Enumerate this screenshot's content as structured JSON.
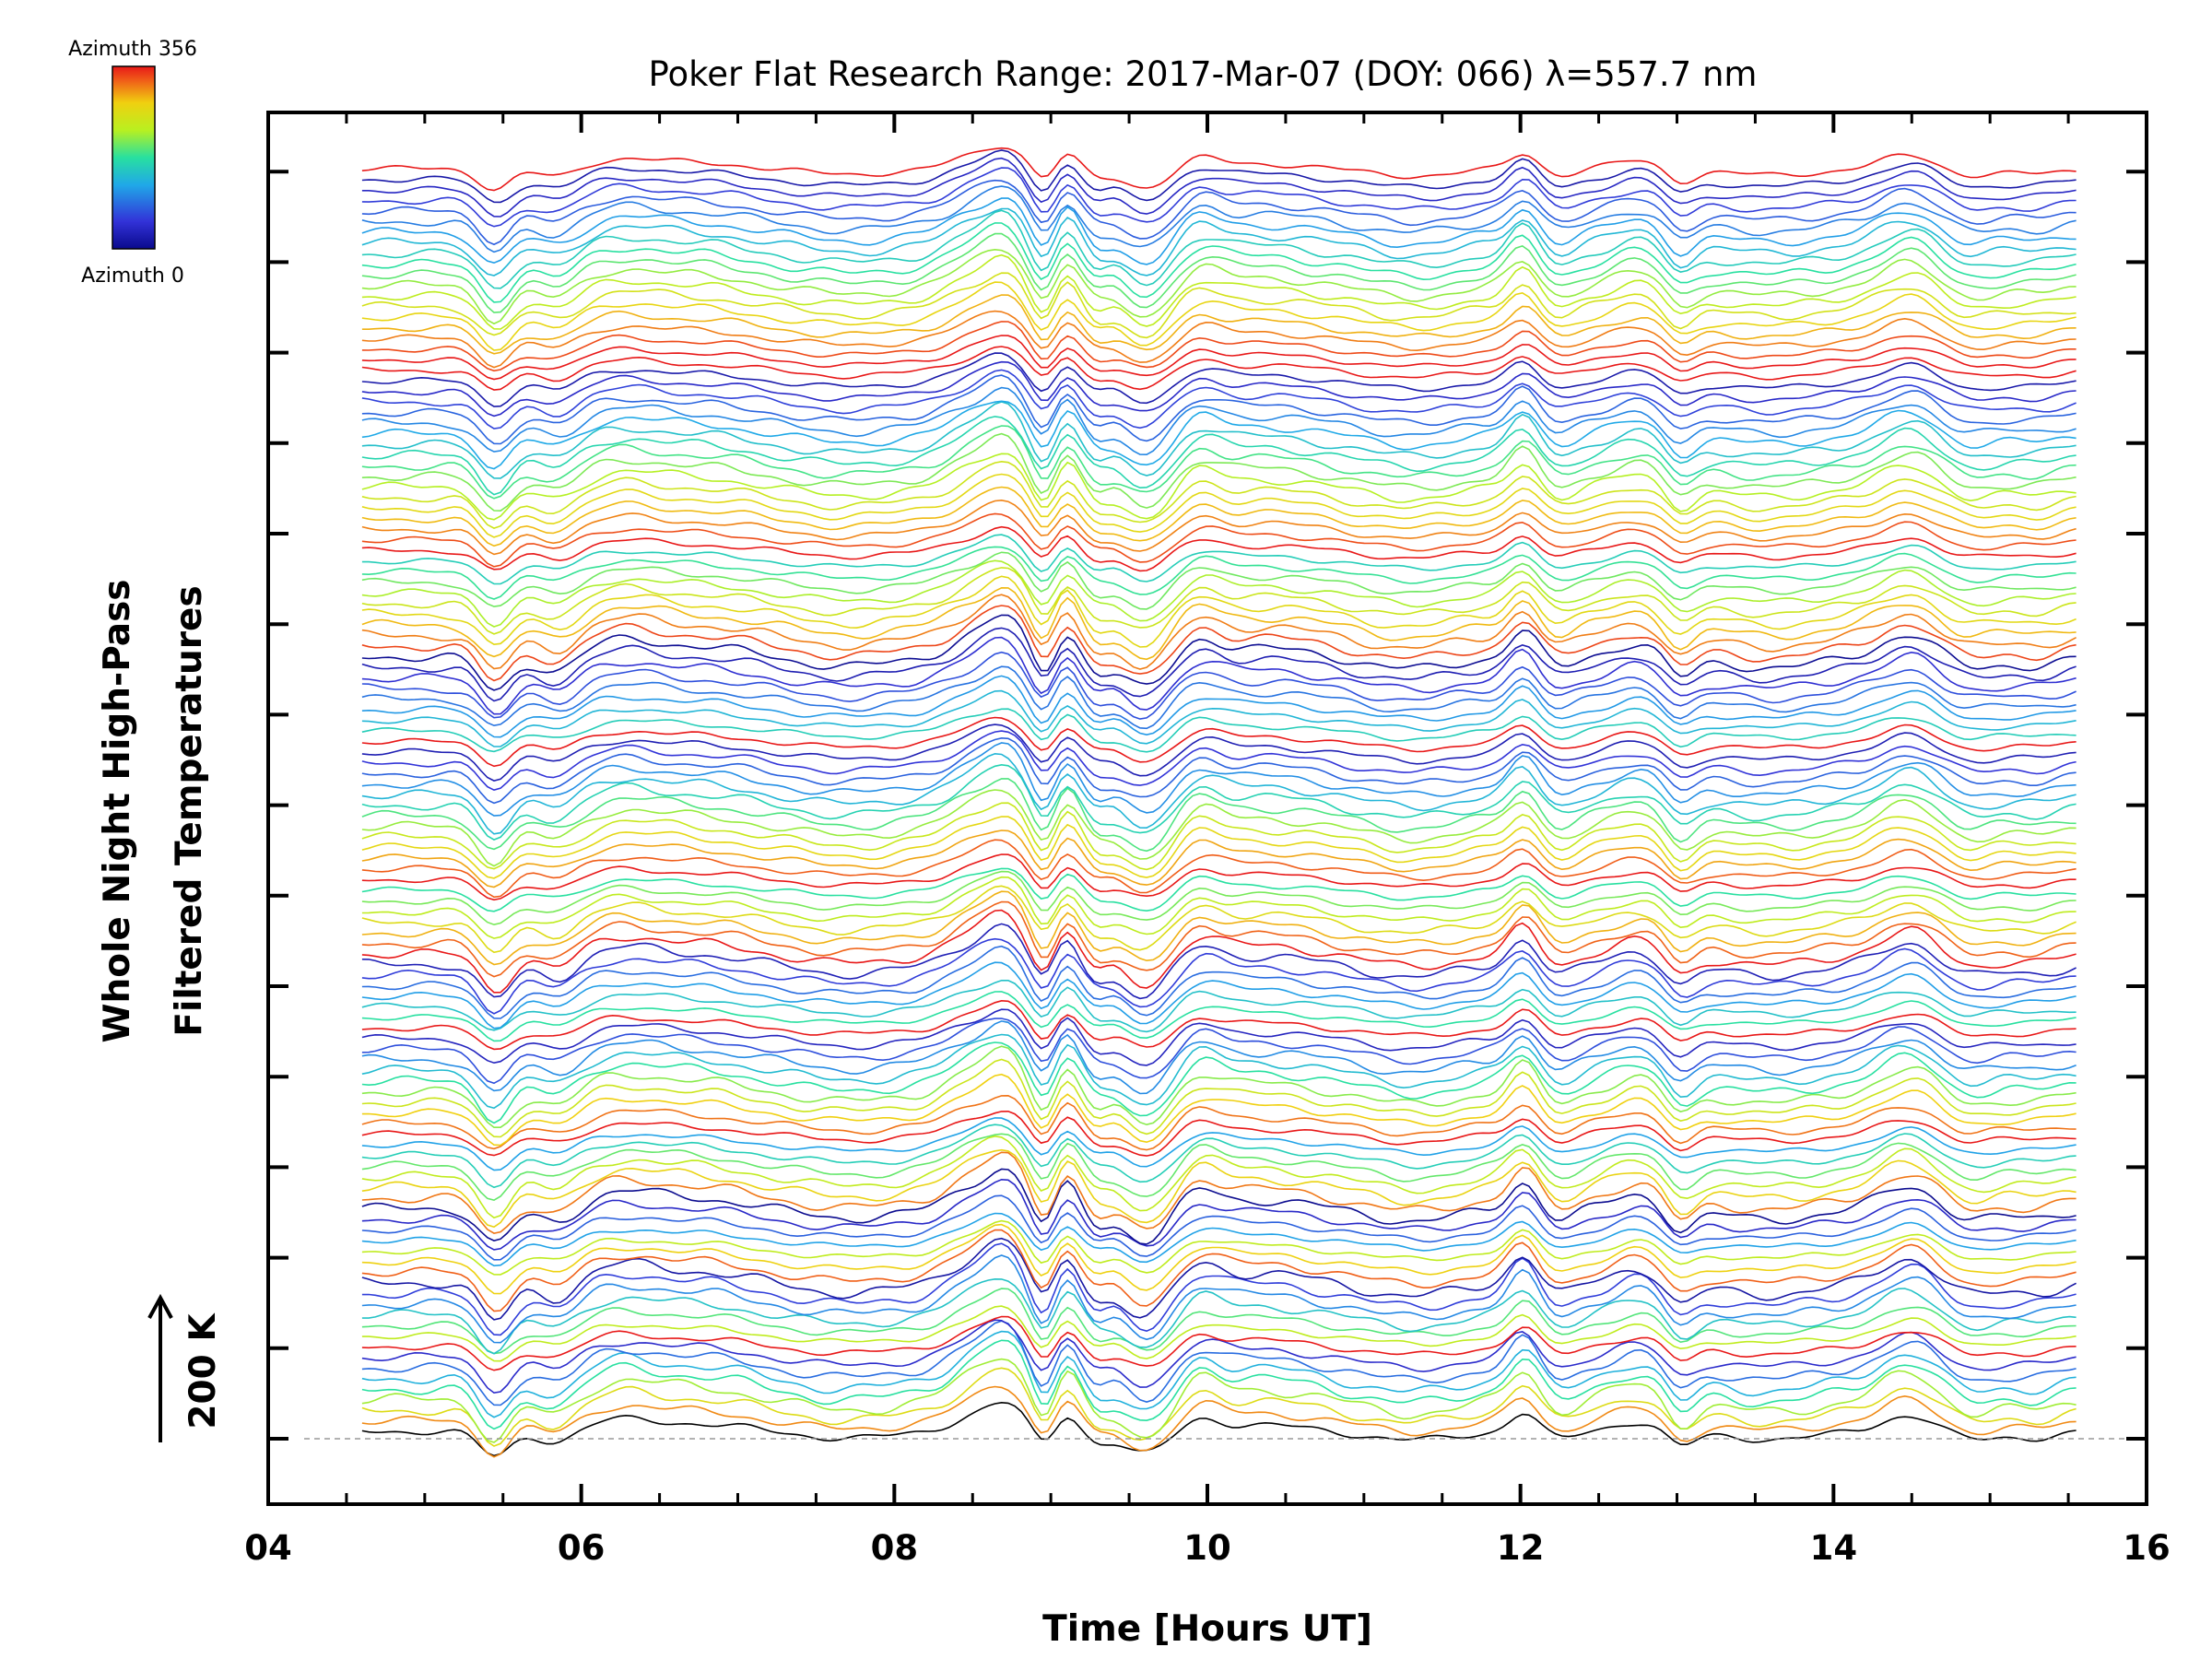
{
  "chart_data": {
    "type": "line",
    "title": "Poker Flat Research Range: 2017-Mar-07 (DOY: 066) λ=557.7 nm",
    "xlabel": "Time [Hours UT]",
    "ylabel_line1": "Whole Night High-Pass",
    "ylabel_line2": "Filtered Temperatures",
    "scale_bar_label": "200 K",
    "xlim": [
      4,
      16
    ],
    "x_ticks": [
      "04",
      "06",
      "08",
      "10",
      "12",
      "14",
      "16"
    ],
    "x_range_data": [
      4.6,
      15.55
    ],
    "colorbar": {
      "top_label": "Azimuth 356",
      "bottom_label": "Azimuth 0",
      "colormap": "rainbow",
      "min": 0,
      "max": 356
    },
    "grid": false,
    "legend": "none",
    "stack_groups": [
      {
        "traces": 9,
        "phase": 0.0,
        "amplitude": 1.0
      },
      {
        "traces": 9,
        "phase": 0.33,
        "amplitude": 0.95
      },
      {
        "traces": 10,
        "phase": 0.66,
        "amplitude": 0.9
      },
      {
        "traces": 11,
        "phase": 0.0,
        "amplitude": 0.88
      },
      {
        "traces": 13,
        "phase": 0.5,
        "amplitude": 0.85
      },
      {
        "traces": 14,
        "phase": 0.0,
        "amplitude": 0.85
      },
      {
        "traces": 17,
        "phase": 0.55,
        "amplitude": 0.85
      },
      {
        "traces": 18,
        "phase": 0.0,
        "amplitude": 0.82
      },
      {
        "traces": 19,
        "phase": 0.0,
        "amplitude": 0.82
      }
    ],
    "features": [
      {
        "x": 5.45,
        "amp": -1.3,
        "width": 0.1,
        "note": "dip"
      },
      {
        "x": 5.85,
        "amp": -0.6,
        "width": 0.12
      },
      {
        "x": 6.25,
        "amp": 0.55,
        "width": 0.22
      },
      {
        "x": 6.75,
        "amp": 0.35,
        "width": 0.3
      },
      {
        "x": 7.7,
        "amp": -0.35,
        "width": 0.3
      },
      {
        "x": 8.5,
        "amp": 0.7,
        "width": 0.15
      },
      {
        "x": 8.72,
        "amp": 1.2,
        "width": 0.12
      },
      {
        "x": 8.95,
        "amp": -0.8,
        "width": 0.07
      },
      {
        "x": 9.1,
        "amp": 0.9,
        "width": 0.07
      },
      {
        "x": 9.3,
        "amp": -0.5,
        "width": 0.07
      },
      {
        "x": 9.6,
        "amp": -1.2,
        "width": 0.14
      },
      {
        "x": 9.95,
        "amp": 0.6,
        "width": 0.12
      },
      {
        "x": 10.35,
        "amp": 0.3,
        "width": 0.3
      },
      {
        "x": 11.3,
        "amp": -0.45,
        "width": 0.28
      },
      {
        "x": 12.02,
        "amp": 1.0,
        "width": 0.09
      },
      {
        "x": 12.25,
        "amp": -0.4,
        "width": 0.1
      },
      {
        "x": 12.75,
        "amp": 0.5,
        "width": 0.15
      },
      {
        "x": 13.02,
        "amp": -0.8,
        "width": 0.09
      },
      {
        "x": 13.6,
        "amp": -0.4,
        "width": 0.3
      },
      {
        "x": 14.5,
        "amp": 0.9,
        "width": 0.18
      },
      {
        "x": 14.85,
        "amp": -0.5,
        "width": 0.18
      },
      {
        "x": 15.3,
        "amp": -0.3,
        "width": 0.15
      }
    ],
    "base_trace_color": "#000000",
    "baseline_color": "#999999"
  }
}
